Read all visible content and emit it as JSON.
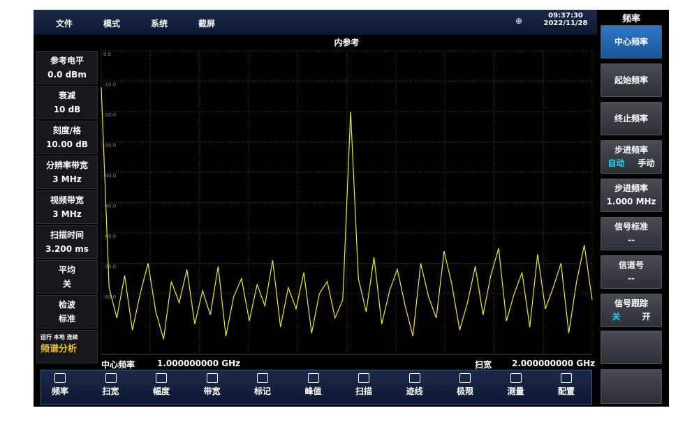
{
  "menu": [
    "文件",
    "模式",
    "系统",
    "截屏"
  ],
  "clock": {
    "time": "09:37:30",
    "date": "2022/11/28"
  },
  "title": "内参考",
  "params": [
    {
      "label": "参考电平",
      "value": "0.0 dBm"
    },
    {
      "label": "衰减",
      "value": "10 dB"
    },
    {
      "label": "刻度/格",
      "value": "10.00 dB"
    },
    {
      "label": "分辨率带宽",
      "value": "3 MHz"
    },
    {
      "label": "视频带宽",
      "value": "3 MHz"
    },
    {
      "label": "扫描时间",
      "value": "3.200 ms"
    },
    {
      "label": "平均",
      "value": "关"
    },
    {
      "label": "检波",
      "value": "标准"
    }
  ],
  "status": "运行 本地 连续",
  "mode": "频谱分析",
  "center": {
    "label": "中心频率",
    "value": "1.000000000 GHz"
  },
  "span": {
    "label": "扫宽",
    "value": "2.000000000 GHz"
  },
  "panel_title": "频率",
  "softkeys": [
    {
      "label": "中心频率"
    },
    {
      "label": "起始频率"
    },
    {
      "label": "终止频率"
    },
    {
      "label": "步进频率",
      "options": [
        "自动",
        "手动"
      ]
    },
    {
      "label": "步进频率",
      "value": "1.000 MHz"
    },
    {
      "label": "信号标准",
      "value": "--"
    },
    {
      "label": "信道号",
      "value": "--"
    },
    {
      "label": "信号跟踪",
      "options": [
        "关",
        "开"
      ]
    }
  ],
  "toolbar": [
    "频率",
    "扫宽",
    "幅度",
    "带宽",
    "标记",
    "峰值",
    "扫描",
    "迹线",
    "极限",
    "测量",
    "配置"
  ],
  "trace": {
    "type": "line",
    "color": "#f2f200",
    "ylim": [
      0,
      -100
    ],
    "yticks": [
      {
        "value": 0,
        "label": "0.0"
      },
      {
        "value": -10,
        "label": "-10.0"
      },
      {
        "value": -20,
        "label": "-20.0"
      },
      {
        "value": -30,
        "label": "-30.0"
      },
      {
        "value": -40,
        "label": "-40.0"
      },
      {
        "value": -50,
        "label": "-50.0"
      },
      {
        "value": -60,
        "label": "-60.0"
      },
      {
        "value": -70,
        "label": "-70.0"
      },
      {
        "value": -80,
        "label": "-80.0"
      }
    ],
    "values": [
      -12,
      -78,
      -88,
      -74,
      -92,
      -80,
      -70,
      -86,
      -95,
      -76,
      -83,
      -72,
      -90,
      -79,
      -87,
      -71,
      -94,
      -81,
      -75,
      -89,
      -77,
      -84,
      -69,
      -91,
      -78,
      -85,
      -73,
      -93,
      -80,
      -76,
      -88,
      -82,
      -20,
      -75,
      -86,
      -68,
      -90,
      -79,
      -72,
      -84,
      -94,
      -70,
      -81,
      -88,
      -66,
      -77,
      -92,
      -83,
      -71,
      -87,
      -74,
      -65,
      -89,
      -80,
      -73,
      -91,
      -67,
      -85,
      -78,
      -70,
      -93,
      -76,
      -64,
      -82
    ]
  }
}
